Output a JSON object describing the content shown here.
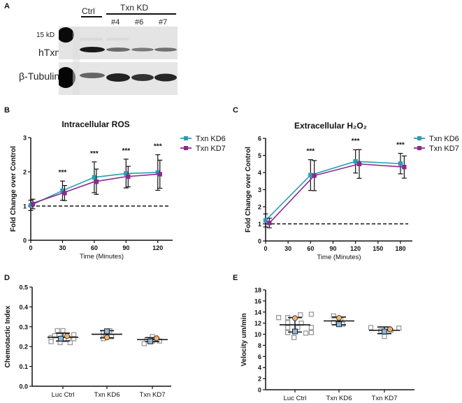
{
  "panels": {
    "a": {
      "letter": "A",
      "ctrl_label": "Ctrl",
      "kd_group_label": "Txn KD",
      "lanes": [
        "#4",
        "#6",
        "#7"
      ],
      "marker_label": "15 kD",
      "row_labels": [
        "hTxn",
        "β-Tubulin"
      ]
    },
    "b": {
      "letter": "B"
    },
    "c": {
      "letter": "C"
    },
    "d": {
      "letter": "D"
    },
    "e": {
      "letter": "E"
    }
  },
  "colors": {
    "kd6": "#2a9db5",
    "kd7": "#8b2a8f",
    "replicate_box": "#9a9a9a",
    "mean_square": "#8ab8e0",
    "mean_circle": "#f2b36a"
  },
  "chart_data": [
    {
      "id": "b",
      "type": "line",
      "title": "Intracellular ROS",
      "xlabel": "Time (Minutes)",
      "ylabel": "Fold Change over Control",
      "xlim": [
        0,
        130
      ],
      "ylim": [
        0,
        3
      ],
      "xticks": [
        0,
        30,
        60,
        90,
        120
      ],
      "yticks": [
        0,
        1,
        2,
        3
      ],
      "reference_line": 1,
      "legend_position": "right",
      "significance": [
        {
          "x": 30,
          "label": "***"
        },
        {
          "x": 60,
          "label": "***"
        },
        {
          "x": 90,
          "label": "***"
        },
        {
          "x": 120,
          "label": "***"
        }
      ],
      "series": [
        {
          "name": "Txn KD6",
          "color_key": "kd6",
          "x": [
            0,
            30,
            60,
            90,
            120
          ],
          "values": [
            1.02,
            1.45,
            1.84,
            1.95,
            1.98
          ],
          "err": [
            0.15,
            0.28,
            0.45,
            0.42,
            0.52
          ]
        },
        {
          "name": "Txn KD7",
          "color_key": "kd7",
          "x": [
            0,
            30,
            60,
            90,
            120
          ],
          "values": [
            1.06,
            1.38,
            1.71,
            1.86,
            1.93
          ],
          "err": [
            0.14,
            0.22,
            0.37,
            0.3,
            0.41
          ]
        }
      ]
    },
    {
      "id": "c",
      "type": "line",
      "title": "Extracellular  H₂O₂",
      "xlabel": "Time (Minutes)",
      "ylabel": "Fold Change over Control",
      "xlim": [
        0,
        190
      ],
      "ylim": [
        0,
        6
      ],
      "xticks": [
        0,
        30,
        60,
        90,
        120,
        150,
        180
      ],
      "yticks": [
        0,
        1,
        2,
        3,
        4,
        5,
        6
      ],
      "reference_line": 1,
      "legend_position": "right",
      "significance": [
        {
          "x": 60,
          "label": "***"
        },
        {
          "x": 120,
          "label": "***"
        },
        {
          "x": 180,
          "label": "***"
        }
      ],
      "series": [
        {
          "name": "Txn KD6",
          "color_key": "kd6",
          "x": [
            0,
            60,
            120,
            180
          ],
          "values": [
            1.2,
            3.85,
            4.65,
            4.52
          ],
          "err": [
            0.38,
            0.9,
            0.68,
            0.6
          ]
        },
        {
          "name": "Txn KD7",
          "color_key": "kd7",
          "x": [
            5,
            65,
            125,
            185
          ],
          "values": [
            1.05,
            3.82,
            4.5,
            4.32
          ],
          "err": [
            0.28,
            0.88,
            0.84,
            0.65
          ]
        }
      ]
    },
    {
      "id": "d",
      "type": "scatter",
      "title": "",
      "xlabel": "",
      "ylabel": "Chemotactic Index",
      "ylim": [
        0,
        0.5
      ],
      "yticks": [
        "0.0",
        "0.1",
        "0.2",
        "0.3",
        "0.4",
        "0.5"
      ],
      "categories": [
        "Luc Ctrl",
        "Txn KD6",
        "Txn KD7"
      ],
      "groups": [
        {
          "mean": 0.247,
          "sd_low": 0.228,
          "sd_high": 0.268,
          "square_mean": 0.24,
          "circle_mean": 0.253,
          "replicates": [
            [
              -0.13,
              0.245
            ],
            [
              -0.13,
              0.225
            ],
            [
              -0.09,
              0.255
            ],
            [
              -0.06,
              0.28
            ],
            [
              -0.03,
              0.22
            ],
            [
              0.0,
              0.28
            ],
            [
              0.02,
              0.235
            ],
            [
              0.06,
              0.24
            ],
            [
              0.08,
              0.22
            ],
            [
              0.12,
              0.26
            ],
            [
              0.12,
              0.24
            ],
            [
              -0.04,
              0.255
            ]
          ]
        },
        {
          "mean": 0.262,
          "sd_low": 0.244,
          "sd_high": 0.28,
          "square_mean": 0.277,
          "circle_mean": 0.246,
          "replicates": [
            [
              -0.04,
              0.27
            ],
            [
              -0.04,
              0.24
            ],
            [
              0.03,
              0.28
            ],
            [
              0.05,
              0.25
            ],
            [
              -0.01,
              0.26
            ]
          ]
        },
        {
          "mean": 0.235,
          "sd_low": 0.225,
          "sd_high": 0.245,
          "square_mean": 0.226,
          "circle_mean": 0.242,
          "replicates": [
            [
              -0.09,
              0.215
            ],
            [
              -0.06,
              0.235
            ],
            [
              0.0,
              0.25
            ],
            [
              0.03,
              0.235
            ],
            [
              0.08,
              0.228
            ],
            [
              0.0,
              0.228
            ]
          ]
        }
      ]
    },
    {
      "id": "e",
      "type": "scatter",
      "title": "",
      "xlabel": "",
      "ylabel": "Velocity um/min",
      "ylim": [
        0,
        18
      ],
      "yticks": [
        0,
        2,
        4,
        6,
        8,
        10,
        12,
        14,
        16,
        18
      ],
      "categories": [
        "Luc Ctrl",
        "Txn KD6",
        "Txn KD7"
      ],
      "groups": [
        {
          "mean": 11.7,
          "sd_low": 10.4,
          "sd_high": 13.0,
          "square_mean": 10.5,
          "circle_mean": 12.9,
          "replicates": [
            [
              -0.18,
              13.0
            ],
            [
              -0.08,
              13.0
            ],
            [
              -0.08,
              12.1
            ],
            [
              -0.08,
              11.2
            ],
            [
              -0.08,
              10.3
            ],
            [
              -0.01,
              9.4
            ],
            [
              0.03,
              11.2
            ],
            [
              0.06,
              13.5
            ],
            [
              0.07,
              12.0
            ],
            [
              0.12,
              10.2
            ],
            [
              0.18,
              13.6
            ],
            [
              0.18,
              11.2
            ],
            [
              0.18,
              10.3
            ]
          ]
        },
        {
          "mean": 12.4,
          "sd_low": 11.7,
          "sd_high": 13.1,
          "square_mean": 11.8,
          "circle_mean": 12.95,
          "replicates": [
            [
              -0.06,
              13.3
            ],
            [
              -0.06,
              12.1
            ],
            [
              0.02,
              12.6
            ],
            [
              0.04,
              11.8
            ]
          ]
        },
        {
          "mean": 10.7,
          "sd_low": 10.1,
          "sd_high": 11.3,
          "square_mean": 10.5,
          "circle_mean": 10.9,
          "replicates": [
            [
              -0.15,
              11.2
            ],
            [
              -0.04,
              10.6
            ],
            [
              0.0,
              9.6
            ],
            [
              0.07,
              10.7
            ],
            [
              0.16,
              11.1
            ]
          ]
        }
      ]
    }
  ]
}
